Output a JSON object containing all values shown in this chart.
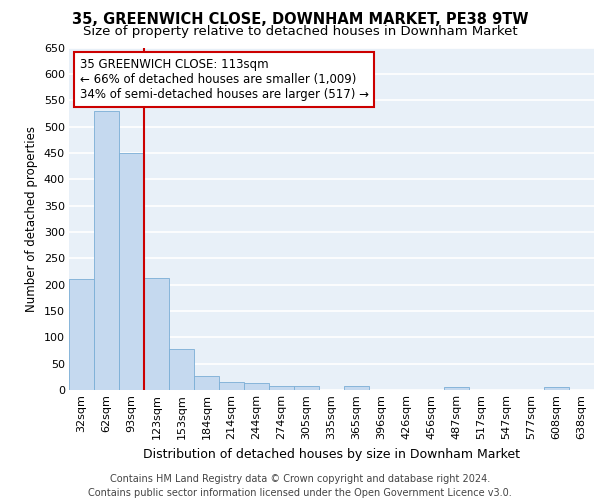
{
  "title1": "35, GREENWICH CLOSE, DOWNHAM MARKET, PE38 9TW",
  "title2": "Size of property relative to detached houses in Downham Market",
  "xlabel": "Distribution of detached houses by size in Downham Market",
  "ylabel": "Number of detached properties",
  "categories": [
    "32sqm",
    "62sqm",
    "93sqm",
    "123sqm",
    "153sqm",
    "184sqm",
    "214sqm",
    "244sqm",
    "274sqm",
    "305sqm",
    "335sqm",
    "365sqm",
    "396sqm",
    "426sqm",
    "456sqm",
    "487sqm",
    "517sqm",
    "547sqm",
    "577sqm",
    "608sqm",
    "638sqm"
  ],
  "values": [
    210,
    530,
    450,
    213,
    78,
    27,
    15,
    13,
    8,
    8,
    0,
    8,
    0,
    0,
    0,
    5,
    0,
    0,
    0,
    5,
    0
  ],
  "bar_color": "#c5d9ef",
  "bar_edge_color": "#7aaed6",
  "vline_color": "#cc0000",
  "annotation_text": "35 GREENWICH CLOSE: 113sqm\n← 66% of detached houses are smaller (1,009)\n34% of semi-detached houses are larger (517) →",
  "annotation_box_color": "white",
  "annotation_box_edge": "#cc0000",
  "footer": "Contains HM Land Registry data © Crown copyright and database right 2024.\nContains public sector information licensed under the Open Government Licence v3.0.",
  "ylim": [
    0,
    650
  ],
  "yticks": [
    0,
    50,
    100,
    150,
    200,
    250,
    300,
    350,
    400,
    450,
    500,
    550,
    600,
    650
  ],
  "bg_color": "#e8f0f8",
  "grid_color": "white",
  "title1_fontsize": 10.5,
  "title2_fontsize": 9.5,
  "xlabel_fontsize": 9,
  "ylabel_fontsize": 8.5,
  "tick_fontsize": 8,
  "footer_fontsize": 7,
  "annotation_fontsize": 8.5
}
